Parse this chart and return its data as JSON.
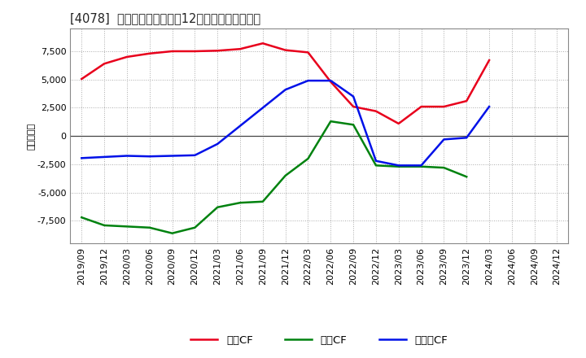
{
  "title": "[4078]  キャッシュフローの12か月移動合計の推移",
  "ylabel": "（百万円）",
  "background_color": "#ffffff",
  "plot_bg_color": "#ffffff",
  "grid_color": "#aaaaaa",
  "ylim": [
    -9500,
    9500
  ],
  "yticks": [
    -7500,
    -5000,
    -2500,
    0,
    2500,
    5000,
    7500
  ],
  "x_labels": [
    "2019/09",
    "2019/12",
    "2020/03",
    "2020/06",
    "2020/09",
    "2020/12",
    "2021/03",
    "2021/06",
    "2021/09",
    "2021/12",
    "2022/03",
    "2022/06",
    "2022/09",
    "2022/12",
    "2023/03",
    "2023/06",
    "2023/09",
    "2023/12",
    "2024/03",
    "2024/06",
    "2024/09",
    "2024/12"
  ],
  "operating_cf": [
    5050,
    6400,
    7000,
    7300,
    7500,
    7500,
    7550,
    7700,
    8200,
    7600,
    7400,
    4800,
    2600,
    2200,
    1100,
    2600,
    2600,
    3100,
    6700,
    null,
    null,
    null
  ],
  "investing_cf": [
    -7200,
    -7900,
    -8000,
    -8100,
    -8600,
    -8100,
    -6300,
    -5900,
    -5800,
    -3500,
    -2000,
    1300,
    1000,
    -2600,
    -2700,
    -2700,
    -2800,
    -3600,
    null,
    null,
    null,
    null
  ],
  "free_cf": [
    -1950,
    -1850,
    -1750,
    -1800,
    -1750,
    -1700,
    -700,
    900,
    2500,
    4100,
    4900,
    4900,
    3500,
    -2200,
    -2600,
    -2600,
    -300,
    -150,
    2600,
    null,
    null,
    null
  ],
  "line_colors": {
    "operating": "#e8001c",
    "investing": "#00820f",
    "free": "#0011e8"
  },
  "line_width": 1.8,
  "legend_labels": {
    "operating": "営業CF",
    "investing": "投資CF",
    "free": "フリーCF"
  }
}
